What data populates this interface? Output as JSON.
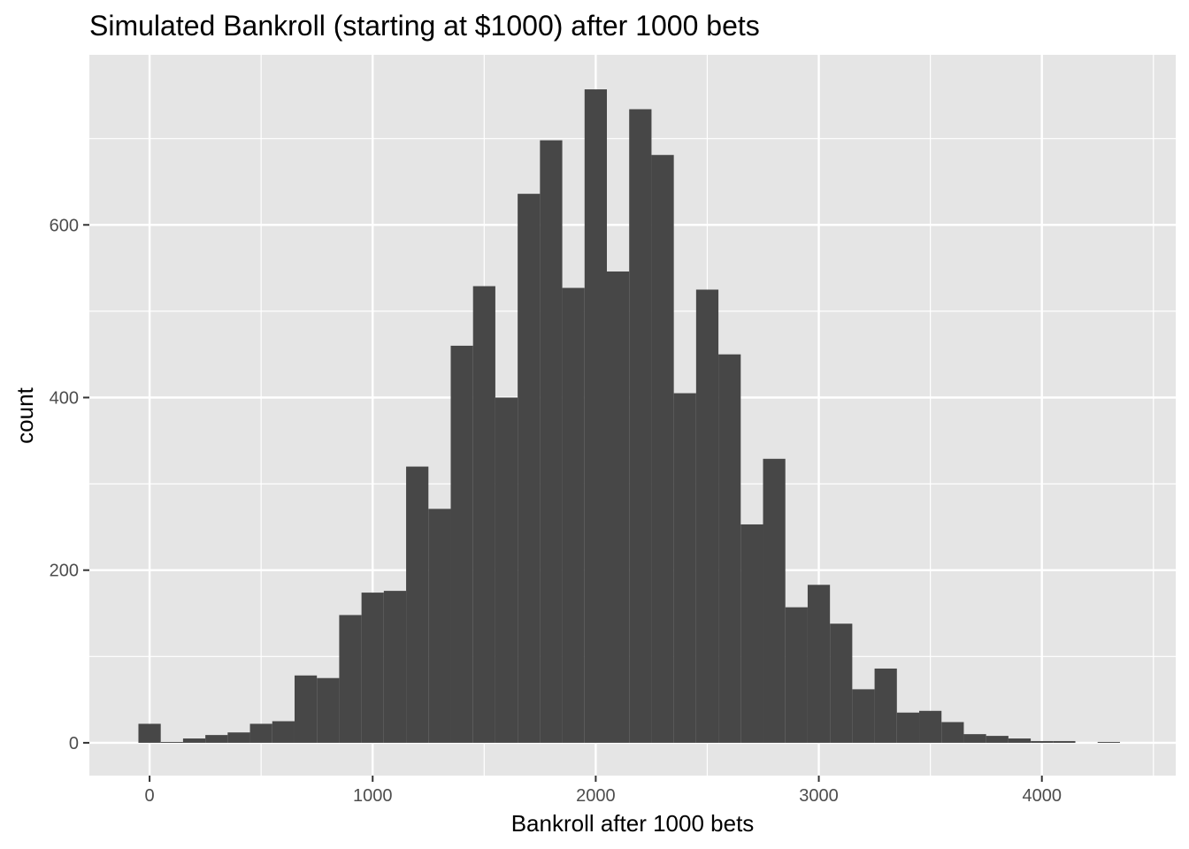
{
  "chart_data": {
    "type": "bar",
    "title": "Simulated Bankroll (starting at $1000) after 1000 bets",
    "xlabel": "Bankroll after 1000 bets",
    "ylabel": "count",
    "xlim": [
      -270,
      4600
    ],
    "ylim": [
      -38,
      797
    ],
    "grid": true,
    "legend": "none",
    "bin_width": 100,
    "x_ticks": [
      0,
      1000,
      2000,
      3000,
      4000
    ],
    "x_tick_labels": [
      "0",
      "1000",
      "2000",
      "3000",
      "4000"
    ],
    "y_ticks": [
      0,
      200,
      400,
      600
    ],
    "y_tick_labels": [
      "0",
      "200",
      "400",
      "600"
    ],
    "colors": {
      "panel_background": "#e5e5e5",
      "grid": "#ffffff",
      "bar_fill": "#474747",
      "tick_mark": "#333333"
    },
    "bin_centers": [
      0,
      100,
      200,
      300,
      400,
      500,
      600,
      700,
      800,
      900,
      1000,
      1100,
      1200,
      1300,
      1400,
      1500,
      1600,
      1700,
      1800,
      1900,
      2000,
      2100,
      2200,
      2300,
      2400,
      2500,
      2600,
      2700,
      2800,
      2900,
      3000,
      3100,
      3200,
      3300,
      3400,
      3500,
      3600,
      3700,
      3800,
      3900,
      4000,
      4100,
      4200,
      4300
    ],
    "values": [
      22,
      1,
      5,
      9,
      12,
      22,
      25,
      78,
      75,
      148,
      174,
      176,
      320,
      271,
      460,
      529,
      400,
      636,
      698,
      527,
      757,
      546,
      734,
      681,
      405,
      525,
      450,
      253,
      329,
      157,
      183,
      138,
      62,
      86,
      35,
      37,
      24,
      10,
      8,
      5,
      2,
      2,
      0,
      1
    ]
  }
}
